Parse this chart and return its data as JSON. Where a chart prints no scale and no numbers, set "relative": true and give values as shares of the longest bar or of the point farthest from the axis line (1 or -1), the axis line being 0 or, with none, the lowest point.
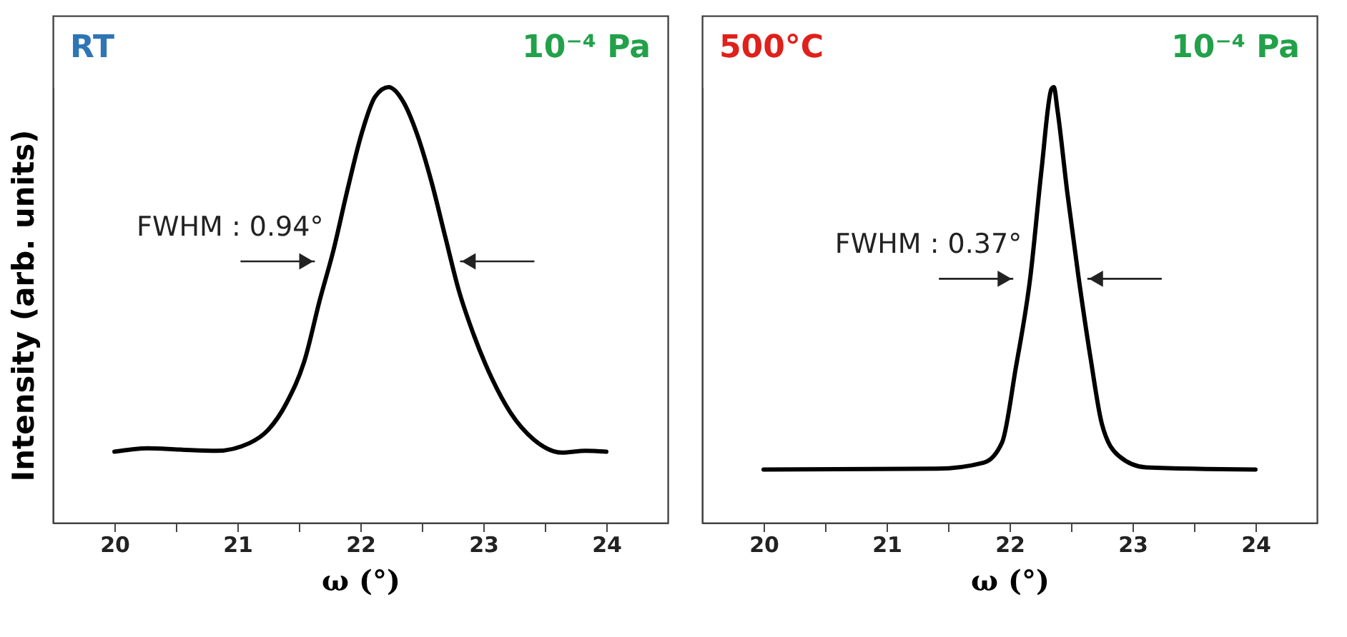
{
  "chart_data": [
    {
      "type": "line",
      "relative": true,
      "xlabel": "ω (°)",
      "ylabel": "Intensity (arb. units)",
      "tick_labels": "x",
      "xlim": [
        19.5,
        24.5
      ],
      "xticks": [
        20,
        {
          "value": 20.5,
          "label": null
        },
        21,
        {
          "value": 21.5,
          "label": null
        },
        22,
        {
          "value": 22.5,
          "label": null
        },
        23,
        {
          "value": 23.5,
          "label": null
        },
        24
      ],
      "annotations": [
        "RT",
        "10⁻⁴ Pa",
        {
          "text": "FWHM : 0.94°",
          "x": 21.7,
          "y": 0.6
        }
      ],
      "series": [
        {
          "color": "#000000",
          "x": [
            20.0,
            20.27,
            20.53,
            20.83,
            21.1,
            21.25,
            21.4,
            21.55,
            21.67,
            21.78,
            21.89,
            22.01,
            22.12,
            22.23,
            22.35,
            22.46,
            22.58,
            22.69,
            22.8,
            22.92,
            23.07,
            23.22,
            23.41,
            23.64,
            23.83,
            24.0
          ],
          "values": [
            0.163,
            0.171,
            0.168,
            0.165,
            0.183,
            0.213,
            0.275,
            0.376,
            0.511,
            0.624,
            0.758,
            0.893,
            0.978,
            1.0,
            0.966,
            0.893,
            0.781,
            0.657,
            0.534,
            0.433,
            0.331,
            0.253,
            0.191,
            0.161,
            0.165,
            0.163
          ]
        }
      ]
    },
    {
      "type": "line",
      "relative": true,
      "xlabel": "ω (°)",
      "tick_labels": "x",
      "xlim": [
        19.5,
        24.5
      ],
      "xticks": [
        20,
        {
          "value": 20.5,
          "label": null
        },
        21,
        {
          "value": 21.5,
          "label": null
        },
        22,
        {
          "value": 22.5,
          "label": null
        },
        23,
        {
          "value": 23.5,
          "label": null
        },
        24
      ],
      "annotations": [
        "500°C",
        "10⁻⁴ Pa",
        {
          "text": "FWHM : 0.37°",
          "x": 22.1,
          "y": 0.56
        }
      ],
      "series": [
        {
          "color": "#000000",
          "x": [
            20.0,
            21.41,
            21.79,
            21.94,
            22.05,
            22.17,
            22.26,
            22.34,
            22.36,
            22.39,
            22.47,
            22.56,
            22.66,
            22.75,
            22.89,
            23.11,
            24.0
          ],
          "values": [
            0.122,
            0.124,
            0.138,
            0.185,
            0.354,
            0.566,
            0.81,
            0.995,
            1.0,
            0.947,
            0.757,
            0.566,
            0.376,
            0.228,
            0.153,
            0.127,
            0.122
          ]
        }
      ]
    }
  ]
}
